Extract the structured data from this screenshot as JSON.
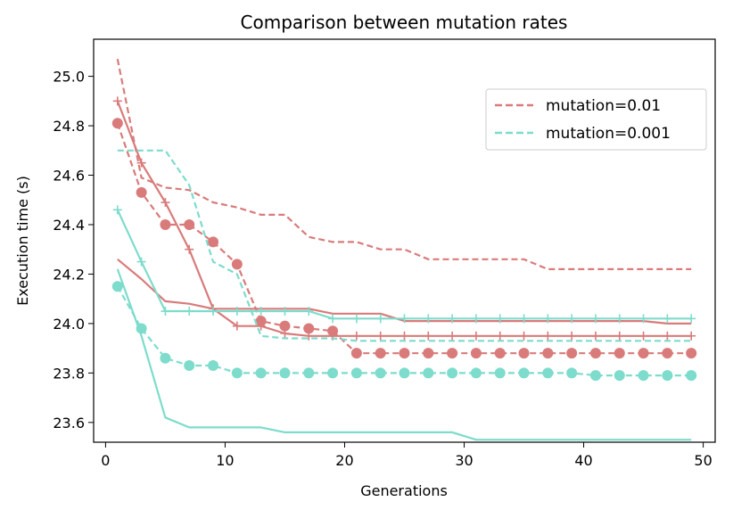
{
  "chart_data": {
    "type": "line",
    "title": "Comparison between mutation rates",
    "xlabel": "Generations",
    "ylabel": "Execution time (s)",
    "xlim": [
      -1,
      51
    ],
    "ylim": [
      23.52,
      25.15
    ],
    "xticks": [
      0,
      10,
      20,
      30,
      40,
      50
    ],
    "yticks": [
      23.6,
      23.8,
      24.0,
      24.2,
      24.4,
      24.6,
      24.8,
      25.0
    ],
    "grid": false,
    "legend_position": "top-right",
    "legend": [
      {
        "label": "mutation=0.01",
        "color": "#d97b7b",
        "dash": true
      },
      {
        "label": "mutation=0.001",
        "color": "#7ddccb",
        "dash": true
      }
    ],
    "series": [
      {
        "group": "mutation=0.01",
        "color": "#d97b7b",
        "dash": true,
        "marker": "none",
        "x": [
          1,
          3,
          5,
          7,
          9,
          11,
          13,
          15,
          17,
          19,
          21,
          23,
          25,
          27,
          29,
          31,
          33,
          35,
          37,
          39,
          41,
          43,
          45,
          47,
          49
        ],
        "y": [
          25.07,
          24.59,
          24.55,
          24.54,
          24.49,
          24.47,
          24.44,
          24.44,
          24.35,
          24.33,
          24.33,
          24.3,
          24.3,
          24.26,
          24.26,
          24.26,
          24.26,
          24.26,
          24.22,
          24.22,
          24.22,
          24.22,
          24.22,
          24.22,
          24.22
        ]
      },
      {
        "group": "mutation=0.01",
        "color": "#d97b7b",
        "dash": false,
        "marker": "none",
        "x": [
          1,
          3,
          5,
          7,
          9,
          11,
          13,
          15,
          17,
          19,
          21,
          23,
          25,
          27,
          29,
          31,
          33,
          35,
          37,
          39,
          41,
          43,
          45,
          47,
          49
        ],
        "y": [
          24.26,
          24.18,
          24.09,
          24.08,
          24.06,
          24.06,
          24.06,
          24.06,
          24.06,
          24.04,
          24.04,
          24.04,
          24.01,
          24.01,
          24.01,
          24.01,
          24.01,
          24.01,
          24.01,
          24.01,
          24.01,
          24.01,
          24.01,
          24.0,
          24.0
        ]
      },
      {
        "group": "mutation=0.01",
        "color": "#d97b7b",
        "dash": false,
        "marker": "plus",
        "x": [
          1,
          3,
          5,
          7,
          9,
          11,
          13,
          15,
          17,
          19,
          21,
          23,
          25,
          27,
          29,
          31,
          33,
          35,
          37,
          39,
          41,
          43,
          45,
          47,
          49
        ],
        "y": [
          24.9,
          24.65,
          24.49,
          24.3,
          24.06,
          23.99,
          23.99,
          23.96,
          23.95,
          23.95,
          23.95,
          23.95,
          23.95,
          23.95,
          23.95,
          23.95,
          23.95,
          23.95,
          23.95,
          23.95,
          23.95,
          23.95,
          23.95,
          23.95,
          23.95
        ]
      },
      {
        "group": "mutation=0.01",
        "color": "#d97b7b",
        "dash": true,
        "marker": "dot",
        "x": [
          1,
          3,
          5,
          7,
          9,
          11,
          13,
          15,
          17,
          19,
          21,
          23,
          25,
          27,
          29,
          31,
          33,
          35,
          37,
          39,
          41,
          43,
          45,
          47,
          49
        ],
        "y": [
          24.81,
          24.53,
          24.4,
          24.4,
          24.33,
          24.24,
          24.01,
          23.99,
          23.98,
          23.97,
          23.88,
          23.88,
          23.88,
          23.88,
          23.88,
          23.88,
          23.88,
          23.88,
          23.88,
          23.88,
          23.88,
          23.88,
          23.88,
          23.88,
          23.88
        ]
      },
      {
        "group": "mutation=0.001",
        "color": "#7ddccb",
        "dash": true,
        "marker": "none",
        "x": [
          1,
          3,
          5,
          7,
          9,
          11,
          13,
          15,
          17,
          19,
          21,
          23,
          25,
          27,
          29,
          31,
          33,
          35,
          37,
          39,
          41,
          43,
          45,
          47,
          49
        ],
        "y": [
          24.7,
          24.7,
          24.7,
          24.56,
          24.25,
          24.2,
          23.95,
          23.94,
          23.94,
          23.94,
          23.93,
          23.93,
          23.93,
          23.93,
          23.93,
          23.93,
          23.93,
          23.93,
          23.93,
          23.93,
          23.93,
          23.93,
          23.93,
          23.93,
          23.93
        ]
      },
      {
        "group": "mutation=0.001",
        "color": "#7ddccb",
        "dash": false,
        "marker": "none",
        "x": [
          1,
          3,
          5,
          7,
          9,
          11,
          13,
          15,
          17,
          19,
          21,
          23,
          25,
          27,
          29,
          31,
          33,
          35,
          37,
          39,
          41,
          43,
          45,
          47,
          49
        ],
        "y": [
          24.22,
          23.95,
          23.62,
          23.58,
          23.58,
          23.58,
          23.58,
          23.56,
          23.56,
          23.56,
          23.56,
          23.56,
          23.56,
          23.56,
          23.56,
          23.53,
          23.53,
          23.53,
          23.53,
          23.53,
          23.53,
          23.53,
          23.53,
          23.53,
          23.53
        ]
      },
      {
        "group": "mutation=0.001",
        "color": "#7ddccb",
        "dash": false,
        "marker": "plus",
        "x": [
          1,
          3,
          5,
          7,
          9,
          11,
          13,
          15,
          17,
          19,
          21,
          23,
          25,
          27,
          29,
          31,
          33,
          35,
          37,
          39,
          41,
          43,
          45,
          47,
          49
        ],
        "y": [
          24.46,
          24.25,
          24.05,
          24.05,
          24.05,
          24.05,
          24.05,
          24.05,
          24.05,
          24.02,
          24.02,
          24.02,
          24.02,
          24.02,
          24.02,
          24.02,
          24.02,
          24.02,
          24.02,
          24.02,
          24.02,
          24.02,
          24.02,
          24.02,
          24.02
        ]
      },
      {
        "group": "mutation=0.001",
        "color": "#7ddccb",
        "dash": true,
        "marker": "dot",
        "x": [
          1,
          3,
          5,
          7,
          9,
          11,
          13,
          15,
          17,
          19,
          21,
          23,
          25,
          27,
          29,
          31,
          33,
          35,
          37,
          39,
          41,
          43,
          45,
          47,
          49
        ],
        "y": [
          24.15,
          23.98,
          23.86,
          23.83,
          23.83,
          23.8,
          23.8,
          23.8,
          23.8,
          23.8,
          23.8,
          23.8,
          23.8,
          23.8,
          23.8,
          23.8,
          23.8,
          23.8,
          23.8,
          23.8,
          23.79,
          23.79,
          23.79,
          23.79,
          23.79
        ]
      }
    ]
  }
}
